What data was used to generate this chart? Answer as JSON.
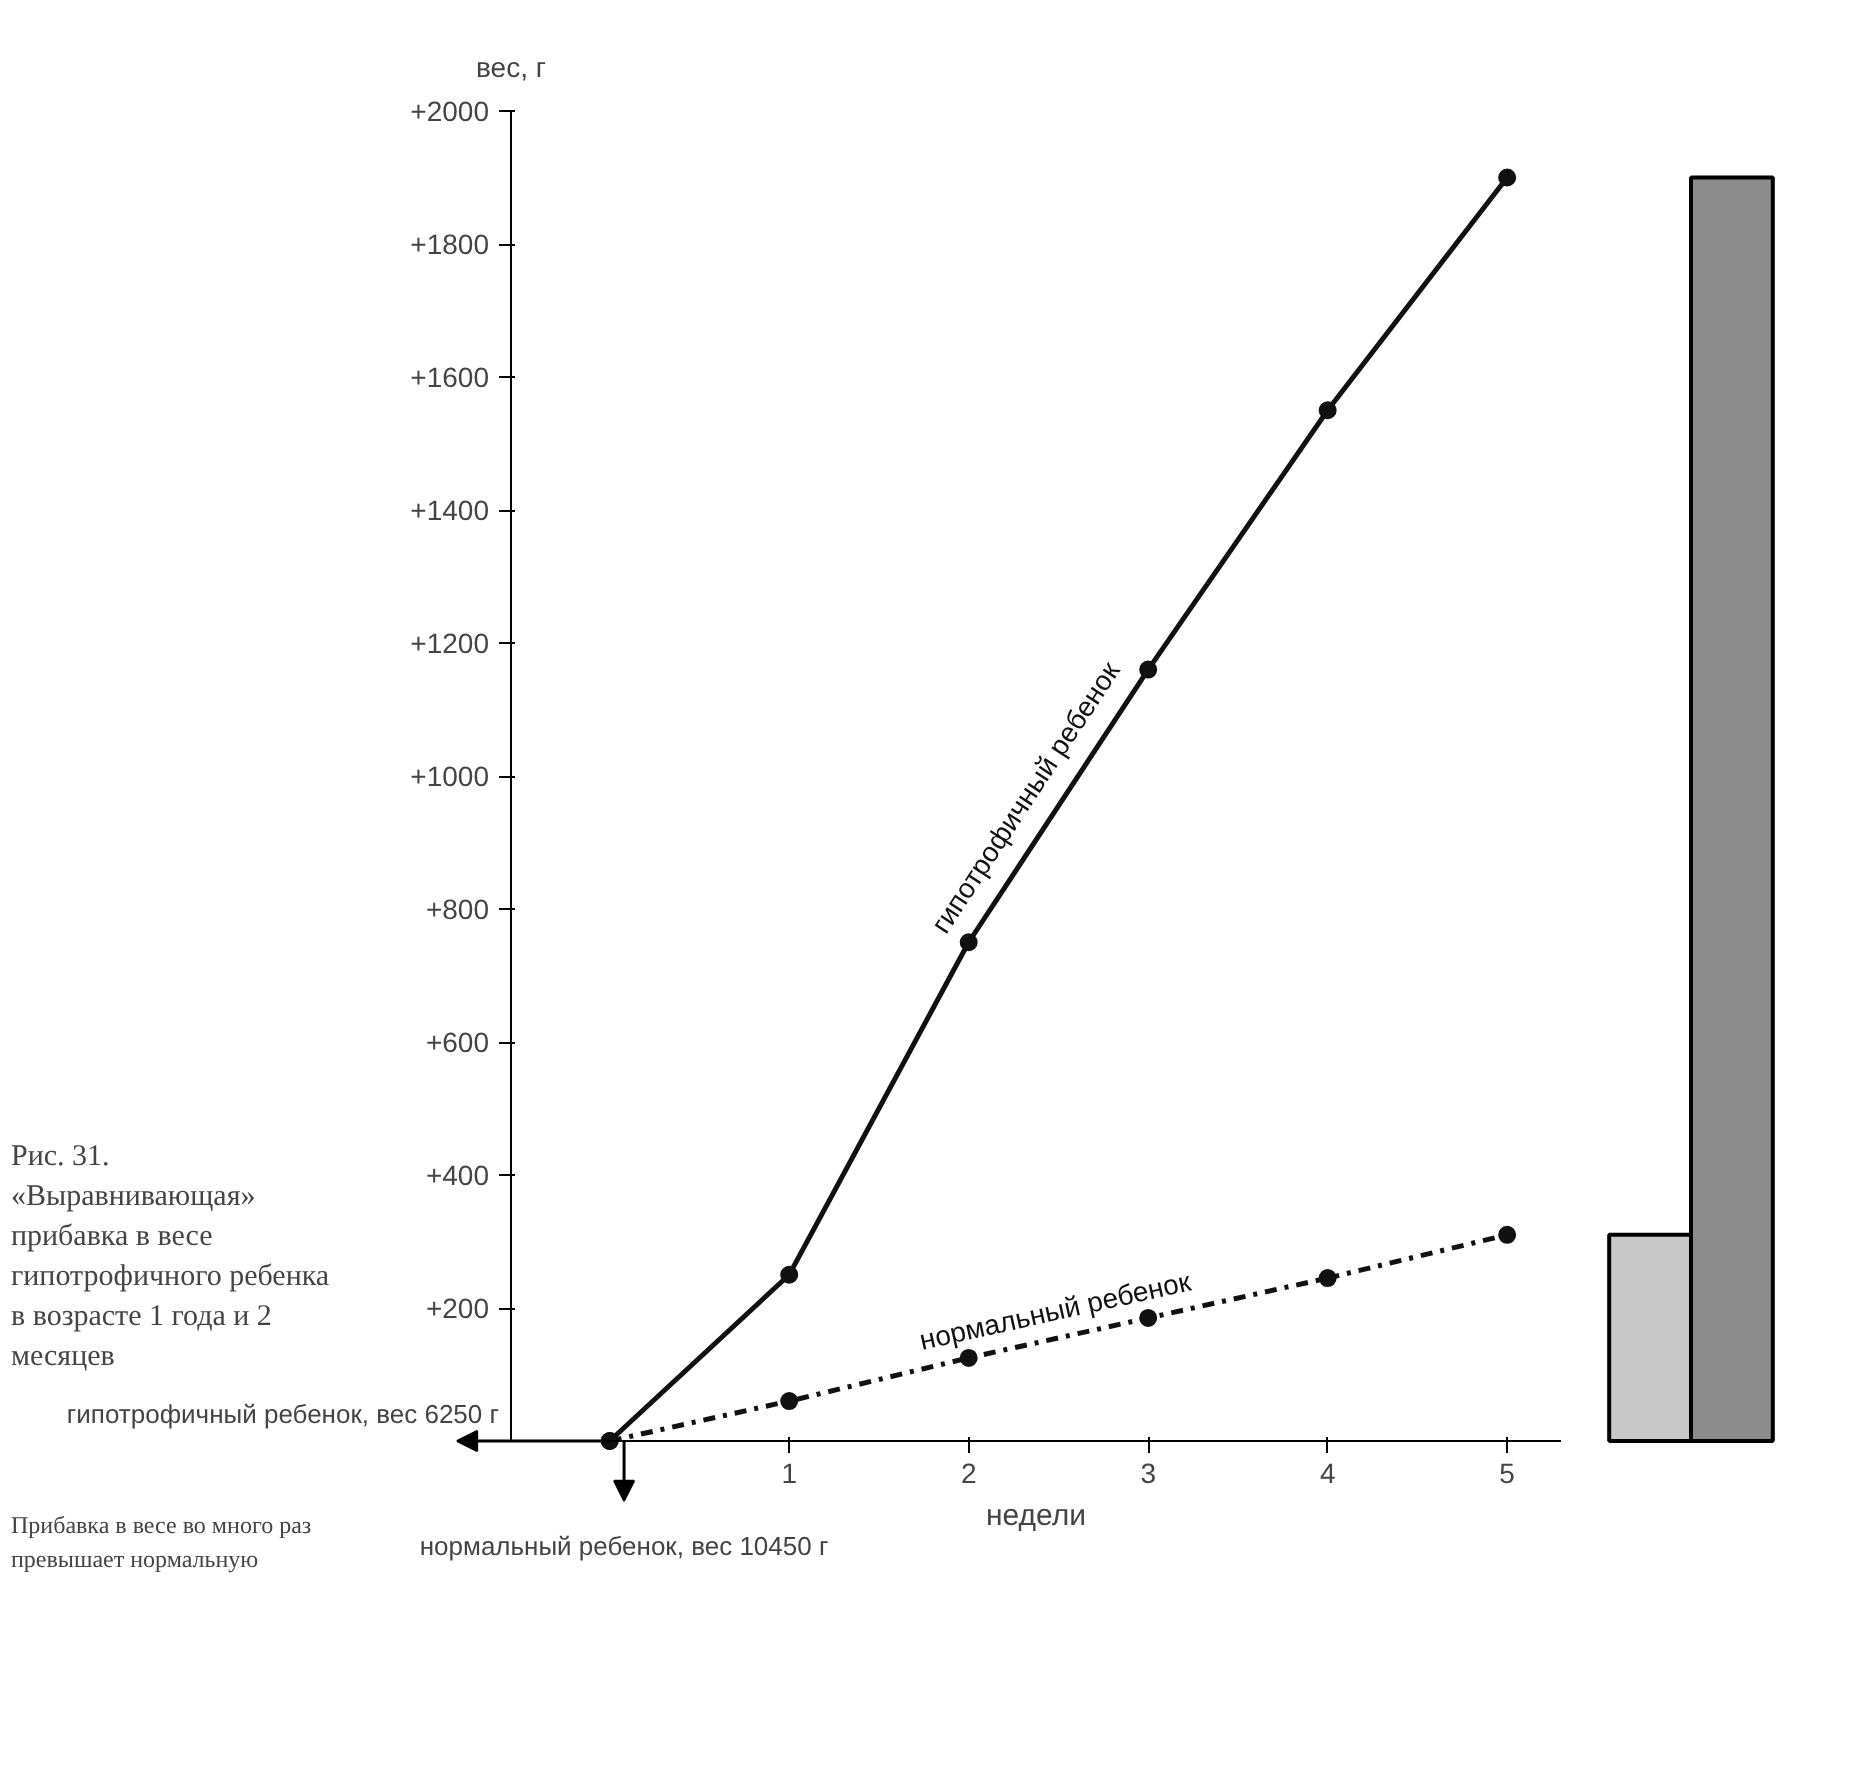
{
  "chart_data": [
    {
      "type": "line",
      "title": "Рис. 31. «Выравнивающая» прибавка в весе гипотрофичного ребенка в возрасте 1 года и 2 месяцев",
      "xlabel": "недели",
      "ylabel": "вес, г",
      "x": [
        0,
        1,
        2,
        3,
        4,
        5
      ],
      "series": [
        {
          "name": "гипотрофичный ребенок",
          "color": "#111111",
          "values": [
            0,
            250,
            750,
            1160,
            1550,
            1900
          ],
          "marker": "circle",
          "line_style": "solid"
        },
        {
          "name": "нормальный ребенок",
          "color": "#111111",
          "values": [
            0,
            60,
            125,
            185,
            245,
            310
          ],
          "marker": "circle",
          "line_style": "dashdot"
        }
      ],
      "xlim": [
        -0.55,
        5.3
      ],
      "xticks": [
        1,
        2,
        3,
        4,
        5
      ],
      "ylim": [
        0,
        2000
      ],
      "yticks": [
        {
          "value": 200,
          "label": "+200"
        },
        {
          "value": 400,
          "label": "+400"
        },
        {
          "value": 600,
          "label": "+600"
        },
        {
          "value": 800,
          "label": "+800"
        },
        {
          "value": 1000,
          "label": "+1000"
        },
        {
          "value": 1200,
          "label": "+1200"
        },
        {
          "value": 1400,
          "label": "+1400"
        },
        {
          "value": 1600,
          "label": "+1600"
        },
        {
          "value": 1800,
          "label": "+1800"
        },
        {
          "value": 2000,
          "label": "+2000"
        }
      ],
      "grid": false,
      "annotations": [
        "Прибавка в весе во много раз превышает нормальную",
        {
          "text": "гипотрофичный ребенок, вес 6250 г",
          "x": 0,
          "y": 0
        },
        {
          "text": "нормальный ребенок, вес 10450 г",
          "x": 0,
          "y": 0
        }
      ]
    },
    {
      "type": "bar",
      "categories": [
        null,
        null
      ],
      "values": [
        310,
        1900
      ],
      "colors": [
        "#c8c8c8",
        "#8c8c8c"
      ],
      "ylim": [
        0,
        2000
      ],
      "tick_labels": false
    }
  ]
}
